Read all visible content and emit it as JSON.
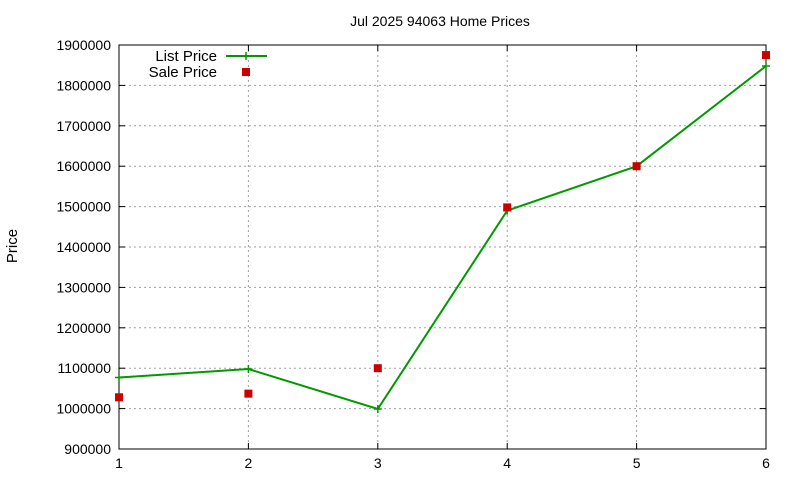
{
  "chart_data": {
    "type": "line",
    "title": "Jul 2025 94063 Home Prices",
    "xlabel": "",
    "ylabel": "Price",
    "xlim": [
      1,
      6
    ],
    "ylim": [
      900000,
      1900000
    ],
    "x_ticks": [
      1,
      2,
      3,
      4,
      5,
      6
    ],
    "y_ticks": [
      900000,
      1000000,
      1100000,
      1200000,
      1300000,
      1400000,
      1500000,
      1600000,
      1700000,
      1800000,
      1900000
    ],
    "grid": true,
    "legend_position": "top-left",
    "series": [
      {
        "name": "List Price",
        "kind": "line-with-points",
        "color": "#009900",
        "marker": "plus",
        "x": [
          1,
          2,
          3,
          4,
          5,
          6
        ],
        "values": [
          1077000,
          1098000,
          999000,
          1490000,
          1600000,
          1848000
        ]
      },
      {
        "name": "Sale Price",
        "kind": "points",
        "color": "#cc0000",
        "marker": "square",
        "x": [
          1,
          2,
          3,
          4,
          5,
          6
        ],
        "values": [
          1028000,
          1037000,
          1100000,
          1498000,
          1600000,
          1875000
        ]
      }
    ]
  }
}
